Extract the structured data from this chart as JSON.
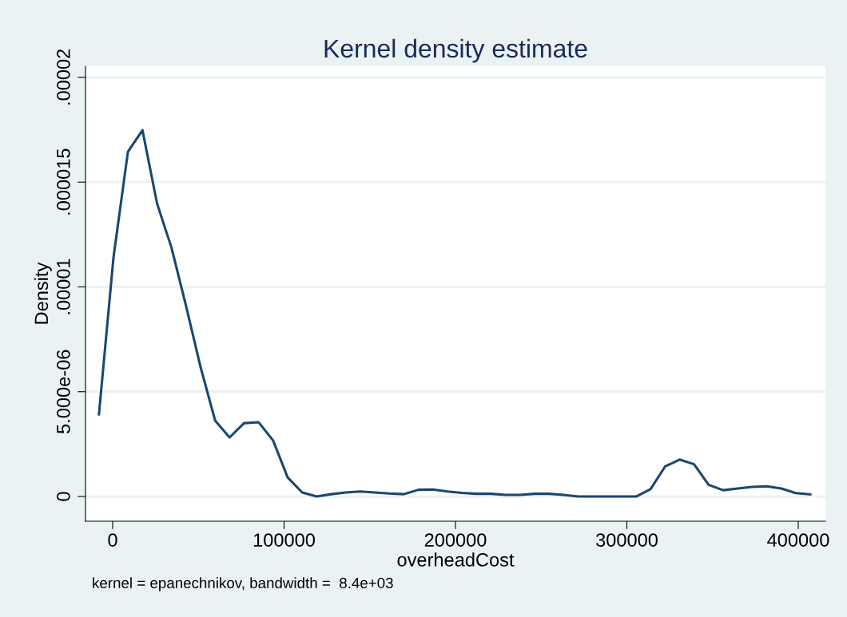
{
  "chart_data": {
    "type": "line",
    "title": "Kernel density estimate",
    "xlabel": "overheadCost",
    "ylabel": "Density",
    "annotations": [
      "kernel = epanechnikov, bandwidth =  8.4e+03"
    ],
    "x": [
      -8000,
      500,
      8900,
      17400,
      25900,
      34300,
      42800,
      51300,
      59800,
      68200,
      76700,
      85200,
      93600,
      102100,
      110600,
      119000,
      127500,
      136000,
      144400,
      152900,
      161400,
      169900,
      178300,
      186800,
      195300,
      203700,
      212200,
      220700,
      229100,
      237600,
      246100,
      254600,
      263000,
      271500,
      280000,
      288400,
      296900,
      305400,
      313800,
      322300,
      330800,
      339200,
      347700,
      356200,
      364700,
      373100,
      381600,
      390100,
      398500,
      407000
    ],
    "series": [
      {
        "color": "#1a476f",
        "values": [
          3.92e-06,
          1.142e-05,
          1.645e-05,
          1.748e-05,
          1.398e-05,
          1.188e-05,
          9.1e-06,
          6.17e-06,
          3.62e-06,
          2.82e-06,
          3.5e-06,
          3.54e-06,
          2.67e-06,
          9.1e-07,
          1.9e-07,
          0,
          1.1e-07,
          1.9e-07,
          2.4e-07,
          1.9e-07,
          1.4e-07,
          1.1e-07,
          3.2e-07,
          3.3e-07,
          2.4e-07,
          1.7e-07,
          1.3e-07,
          1.3e-07,
          8e-08,
          8e-08,
          1.3e-07,
          1.3e-07,
          8e-08,
          0,
          0,
          0,
          0,
          0,
          3.5e-07,
          1.43e-06,
          1.76e-06,
          1.54e-06,
          5.6e-07,
          3e-07,
          3.8e-07,
          4.6e-07,
          4.9e-07,
          3.8e-07,
          1.6e-07,
          1e-07
        ]
      }
    ],
    "xlim": [
      -15850,
      415850
    ],
    "ylim": [
      -1.18e-06,
      2.053e-05
    ],
    "xticks": [
      0,
      100000,
      200000,
      300000,
      400000
    ],
    "yticks": [
      0,
      {
        "value": 5e-06,
        "label": "5.000e-06"
      },
      {
        "value": 1e-05,
        "label": ".00001"
      },
      {
        "value": 1.5e-05,
        "label": ".000015"
      },
      {
        "value": 2e-05,
        "label": ".00002"
      }
    ],
    "grid": "y",
    "line_style": "solid",
    "marker": "none"
  }
}
